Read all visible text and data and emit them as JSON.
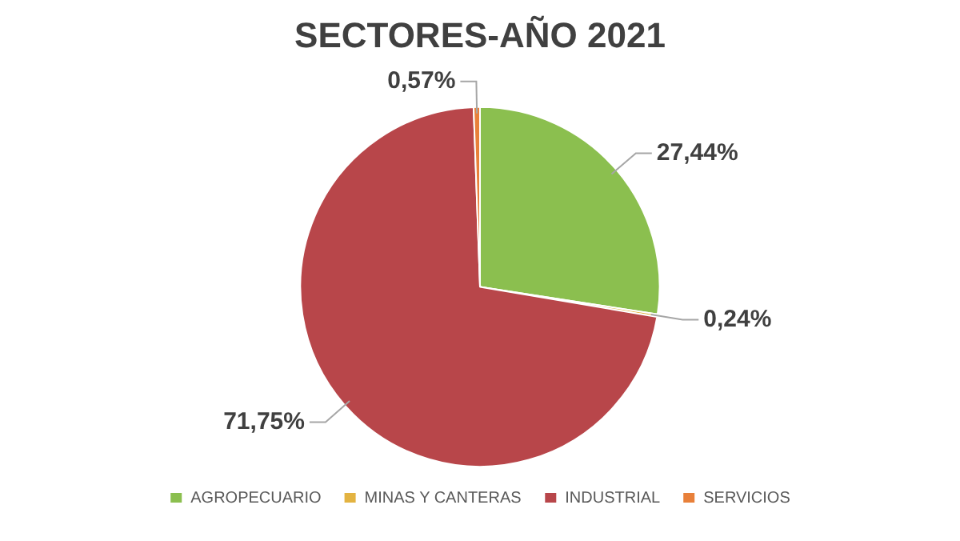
{
  "chart_data": {
    "type": "pie",
    "title": "SECTORES-AÑO 2021",
    "categories": [
      "AGROPECUARIO",
      "MINAS Y CANTERAS",
      "INDUSTRIAL",
      "SERVICIOS"
    ],
    "values": [
      27.44,
      0.24,
      71.75,
      0.57
    ],
    "colors": [
      "#8bbf4f",
      "#e3b341",
      "#b8464a",
      "#e8803a"
    ],
    "value_labels": [
      "27,44%",
      "0,24%",
      "71,75%",
      "0,57%"
    ],
    "legend": "bottom"
  }
}
